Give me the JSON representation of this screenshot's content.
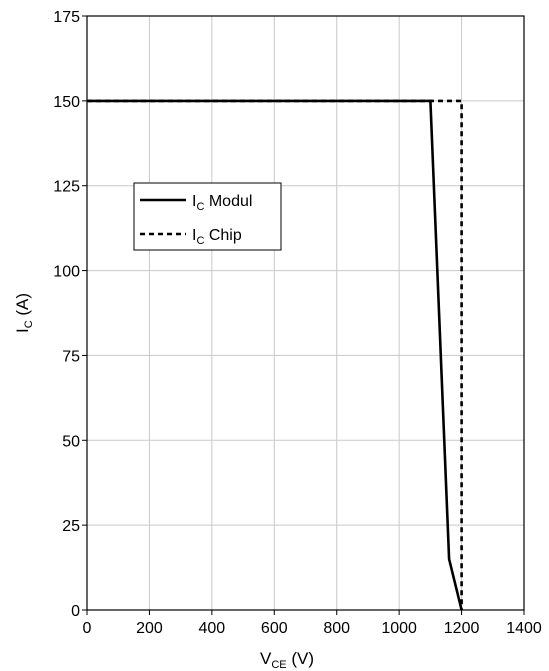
{
  "chart_data": {
    "type": "line",
    "xlabel_main": "V",
    "xlabel_sub": "CE",
    "xlabel_unit": " (V)",
    "ylabel_main": "I",
    "ylabel_sub": "C",
    "ylabel_unit": " (A)",
    "xlim": [
      0,
      1400
    ],
    "ylim": [
      0,
      175
    ],
    "xticks": [
      0,
      200,
      400,
      600,
      800,
      1000,
      1200,
      1400
    ],
    "yticks": [
      0,
      25,
      50,
      75,
      100,
      125,
      150,
      175
    ],
    "grid": true,
    "legend_position": "upper-left",
    "series": [
      {
        "legend_main": "I",
        "legend_sub": "C",
        "legend_rest": " Modul",
        "style": "solid",
        "color": "#000000",
        "points": [
          [
            0,
            150
          ],
          [
            1100,
            150
          ],
          [
            1160,
            15
          ],
          [
            1200,
            0
          ]
        ]
      },
      {
        "legend_main": "I",
        "legend_sub": "C",
        "legend_rest": " Chip",
        "style": "dashed",
        "color": "#000000",
        "points": [
          [
            0,
            150
          ],
          [
            1200,
            150
          ],
          [
            1200,
            0
          ]
        ]
      }
    ]
  }
}
